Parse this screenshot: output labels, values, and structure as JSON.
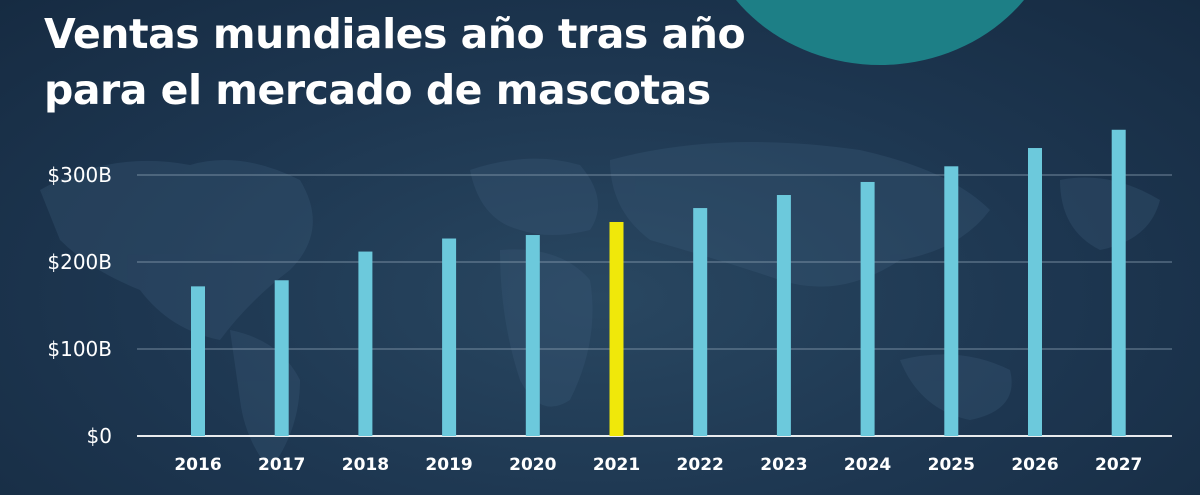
{
  "title_lines": [
    "Ventas mundiales año tras año",
    "para el mercado de mascotas"
  ],
  "colors": {
    "background": "#1d3650",
    "bar": "#6cc9dc",
    "highlight_bar": "#f0e80a",
    "gridline": "#8fa4b6",
    "text": "#ffffff",
    "decor_circle": "#1d7f86"
  },
  "chart_data": {
    "type": "bar",
    "title": "Ventas mundiales año tras año para el mercado de mascotas",
    "xlabel": "",
    "ylabel": "",
    "categories": [
      "2016",
      "2017",
      "2018",
      "2019",
      "2020",
      "2021",
      "2022",
      "2023",
      "2024",
      "2025",
      "2026",
      "2027"
    ],
    "values": [
      172,
      179,
      212,
      227,
      231,
      246,
      262,
      277,
      292,
      310,
      331,
      352
    ],
    "highlight_category": "2021",
    "ylim": [
      0,
      350
    ],
    "yticks": [
      0,
      100,
      200,
      300
    ],
    "ytick_labels": [
      "$0",
      "$100B",
      "$200B",
      "$300B"
    ],
    "grid": true,
    "legend": "none"
  }
}
